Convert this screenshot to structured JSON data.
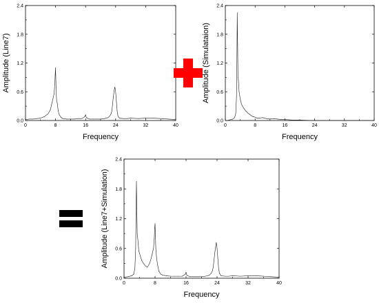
{
  "colors": {
    "plus": "#ff0000",
    "equals": "#000000",
    "line": "#1a1a1a"
  },
  "operators": {
    "plus_icon": "plus-icon",
    "equals_icon": "equals-icon"
  },
  "chart_data": [
    {
      "type": "line",
      "xlabel": "Frequency",
      "ylabel": "Amplitude (Line7)",
      "xlim": [
        0,
        40
      ],
      "ylim": [
        0,
        2.4
      ],
      "xticks": [
        0,
        8,
        16,
        24,
        32,
        40
      ],
      "yticks": [
        "0.0",
        "0.6",
        "1.2",
        "1.8",
        "2.4"
      ],
      "grid": false,
      "series": [
        {
          "x": [
            0,
            1,
            2,
            3,
            4,
            5,
            6,
            6.6,
            7,
            7.3,
            7.6,
            7.8,
            7.9,
            8.0,
            8.1,
            8.2,
            8.3,
            8.5,
            8.7,
            9.0,
            9.5,
            10,
            11,
            12,
            13,
            14,
            15,
            15.8,
            16,
            16.2,
            17,
            18,
            19,
            20,
            21,
            22,
            22.5,
            22.8,
            23.0,
            23.2,
            23.4,
            23.6,
            23.8,
            24.0,
            24.2,
            24.4,
            24.6,
            25,
            26,
            27,
            28,
            30,
            32,
            34,
            36,
            38,
            40
          ],
          "y": [
            0.02,
            0.03,
            0.03,
            0.04,
            0.05,
            0.08,
            0.14,
            0.22,
            0.35,
            0.45,
            0.55,
            0.75,
            0.95,
            1.1,
            0.8,
            0.55,
            0.4,
            0.35,
            0.2,
            0.12,
            0.06,
            0.04,
            0.03,
            0.03,
            0.03,
            0.04,
            0.04,
            0.08,
            0.12,
            0.06,
            0.03,
            0.03,
            0.03,
            0.03,
            0.04,
            0.06,
            0.1,
            0.14,
            0.2,
            0.35,
            0.5,
            0.62,
            0.7,
            0.6,
            0.4,
            0.2,
            0.1,
            0.05,
            0.04,
            0.04,
            0.05,
            0.04,
            0.05,
            0.05,
            0.04,
            0.03,
            0.02
          ]
        }
      ]
    },
    {
      "type": "line",
      "xlabel": "Frequency",
      "ylabel": "Amplitude (Simulataion)",
      "xlim": [
        0,
        40
      ],
      "ylim": [
        0,
        2.4
      ],
      "xticks": [
        0,
        8,
        16,
        24,
        32,
        40
      ],
      "yticks": [
        "0.0",
        "0.6",
        "1.2",
        "1.8",
        "2.4"
      ],
      "grid": false,
      "series": [
        {
          "x": [
            0,
            0.5,
            1,
            1.5,
            2,
            2.5,
            2.8,
            3.0,
            3.1,
            3.2,
            3.3,
            3.4,
            3.5,
            3.7,
            3.9,
            4.1,
            4.3,
            4.6,
            5,
            5.5,
            6,
            6.5,
            7,
            7.5,
            8,
            8.5,
            9,
            10,
            11,
            12,
            13,
            14,
            15,
            16,
            18,
            20,
            24,
            28,
            32,
            36,
            40
          ],
          "y": [
            0.0,
            0.0,
            0.01,
            0.02,
            0.03,
            0.06,
            0.15,
            0.5,
            1.2,
            2.25,
            1.6,
            0.9,
            0.85,
            0.6,
            0.5,
            0.42,
            0.35,
            0.3,
            0.25,
            0.2,
            0.16,
            0.13,
            0.1,
            0.08,
            0.07,
            0.05,
            0.05,
            0.06,
            0.04,
            0.03,
            0.04,
            0.03,
            0.02,
            0.02,
            0.01,
            0.01,
            0.0,
            0.0,
            0.0,
            0.0,
            0.0
          ]
        }
      ]
    },
    {
      "type": "line",
      "xlabel": "Frequency",
      "ylabel": "Amplitude (Line7+Simulation)",
      "xlim": [
        0,
        40
      ],
      "ylim": [
        0,
        2.4
      ],
      "xticks": [
        0,
        8,
        16,
        24,
        32,
        40
      ],
      "yticks": [
        "0.0",
        "0.6",
        "1.2",
        "1.8",
        "2.4"
      ],
      "grid": false,
      "series": [
        {
          "x": [
            0,
            1,
            2,
            2.5,
            2.8,
            3.0,
            3.1,
            3.2,
            3.3,
            3.4,
            3.6,
            3.8,
            4.0,
            4.3,
            4.6,
            5,
            5.5,
            6,
            6.6,
            7,
            7.3,
            7.6,
            7.8,
            7.9,
            8.0,
            8.1,
            8.2,
            8.4,
            8.7,
            9.0,
            9.5,
            10,
            11,
            12,
            13,
            14,
            15,
            15.8,
            16,
            16.2,
            17,
            18,
            19,
            20,
            21,
            22,
            22.5,
            22.8,
            23.0,
            23.2,
            23.4,
            23.6,
            23.8,
            24.0,
            24.2,
            24.4,
            24.6,
            25,
            26,
            27,
            28,
            30,
            32,
            34,
            36,
            38,
            40
          ],
          "y": [
            0.02,
            0.03,
            0.05,
            0.08,
            0.2,
            0.6,
            1.3,
            1.95,
            1.4,
            0.9,
            0.75,
            0.55,
            0.5,
            0.42,
            0.35,
            0.3,
            0.25,
            0.22,
            0.3,
            0.4,
            0.5,
            0.6,
            0.8,
            1.0,
            1.1,
            0.85,
            0.6,
            0.4,
            0.25,
            0.14,
            0.08,
            0.06,
            0.05,
            0.04,
            0.04,
            0.04,
            0.04,
            0.08,
            0.12,
            0.06,
            0.03,
            0.03,
            0.03,
            0.03,
            0.04,
            0.06,
            0.1,
            0.15,
            0.22,
            0.36,
            0.5,
            0.62,
            0.72,
            0.6,
            0.4,
            0.2,
            0.1,
            0.05,
            0.04,
            0.04,
            0.05,
            0.04,
            0.05,
            0.05,
            0.04,
            0.03,
            0.02
          ]
        }
      ]
    }
  ]
}
